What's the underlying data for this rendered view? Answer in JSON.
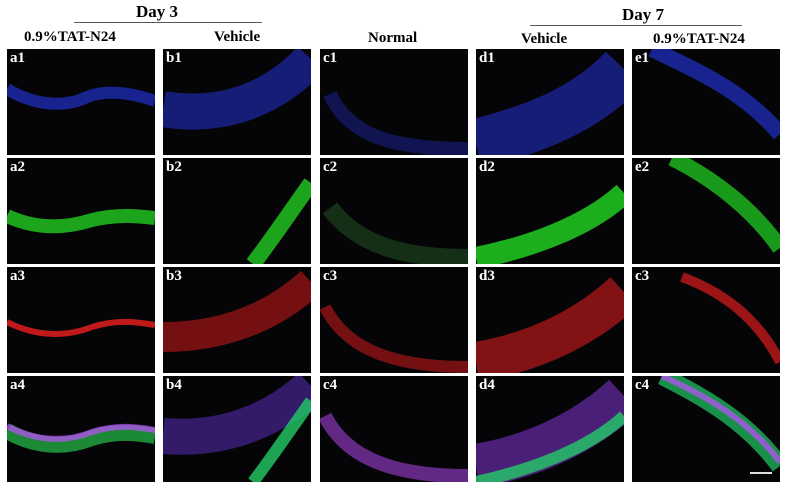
{
  "header": {
    "group_day3": "Day 3",
    "group_day7": "Day 7",
    "columns": [
      "0.9%TAT-N24",
      "Vehicle",
      "Normal",
      "Vehicle",
      "0.9%TAT-N24"
    ]
  },
  "panels": [
    [
      "a1",
      "b1",
      "c1",
      "d1",
      "e1"
    ],
    [
      "a2",
      "b2",
      "c2",
      "d2",
      "e2"
    ],
    [
      "a3",
      "b3",
      "c3",
      "d3",
      "c3"
    ],
    [
      "a4",
      "b4",
      "c4",
      "d4",
      "c4"
    ]
  ],
  "channels": [
    {
      "row": 1,
      "name": "blue",
      "color": "#2a3cff"
    },
    {
      "row": 2,
      "name": "green",
      "color": "#22cc22"
    },
    {
      "row": 3,
      "name": "red",
      "color": "#ff2020"
    },
    {
      "row": 4,
      "name": "merge",
      "color": "#c04cff"
    }
  ]
}
